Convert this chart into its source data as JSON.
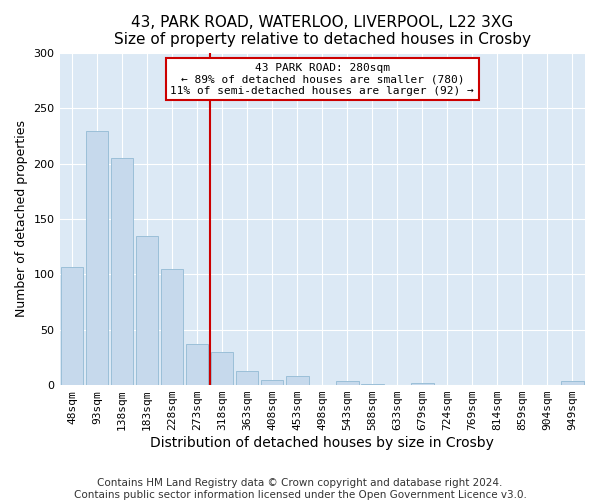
{
  "title1": "43, PARK ROAD, WATERLOO, LIVERPOOL, L22 3XG",
  "title2": "Size of property relative to detached houses in Crosby",
  "xlabel": "Distribution of detached houses by size in Crosby",
  "ylabel": "Number of detached properties",
  "categories": [
    "48sqm",
    "93sqm",
    "138sqm",
    "183sqm",
    "228sqm",
    "273sqm",
    "318sqm",
    "363sqm",
    "408sqm",
    "453sqm",
    "498sqm",
    "543sqm",
    "588sqm",
    "633sqm",
    "679sqm",
    "724sqm",
    "769sqm",
    "814sqm",
    "859sqm",
    "904sqm",
    "949sqm"
  ],
  "values": [
    107,
    229,
    205,
    135,
    105,
    37,
    30,
    13,
    5,
    8,
    0,
    4,
    1,
    0,
    2,
    0,
    0,
    0,
    0,
    0,
    4
  ],
  "bar_color": "#c6d9ec",
  "bar_edge_color": "#9bbfd8",
  "vline_x": 5.5,
  "vline_color": "#cc0000",
  "annotation_title": "43 PARK ROAD: 280sqm",
  "annotation_line1": "← 89% of detached houses are smaller (780)",
  "annotation_line2": "11% of semi-detached houses are larger (92) →",
  "annotation_box_color": "#ffffff",
  "annotation_box_edge": "#cc0000",
  "ylim": [
    0,
    300
  ],
  "yticks": [
    0,
    50,
    100,
    150,
    200,
    250,
    300
  ],
  "footer1": "Contains HM Land Registry data © Crown copyright and database right 2024.",
  "footer2": "Contains public sector information licensed under the Open Government Licence v3.0.",
  "plot_bg_color": "#dce9f5",
  "fig_bg_color": "#ffffff",
  "title1_fontsize": 11,
  "title2_fontsize": 10,
  "xlabel_fontsize": 10,
  "ylabel_fontsize": 9,
  "tick_fontsize": 8,
  "footer_fontsize": 7.5
}
